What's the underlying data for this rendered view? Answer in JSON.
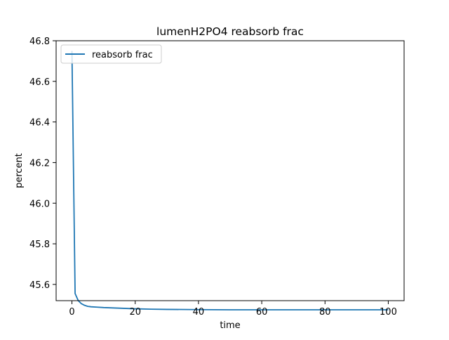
{
  "chart_data": {
    "type": "line",
    "title": "lumenH2PO4 reabsorb frac",
    "xlabel": "time",
    "ylabel": "percent",
    "xlim": [
      -5,
      105
    ],
    "ylim": [
      45.52,
      46.8
    ],
    "xticks": [
      0,
      20,
      40,
      60,
      80,
      100
    ],
    "yticks": [
      45.6,
      45.8,
      46.0,
      46.2,
      46.4,
      46.6,
      46.8
    ],
    "xtick_labels": [
      "0",
      "20",
      "40",
      "60",
      "80",
      "100"
    ],
    "ytick_labels": [
      "45.6",
      "45.8",
      "46.0",
      "46.2",
      "46.4",
      "46.6",
      "46.8"
    ],
    "grid": false,
    "legend_position": "upper left",
    "series": [
      {
        "name": "reabsorb frac",
        "color": "#1f77b4",
        "x": [
          0,
          1,
          2,
          3,
          4,
          5,
          6,
          8,
          10,
          15,
          20,
          25,
          30,
          40,
          50,
          60,
          70,
          80,
          90,
          100
        ],
        "y": [
          46.75,
          45.555,
          45.52,
          45.505,
          45.497,
          45.492,
          45.49,
          45.488,
          45.486,
          45.483,
          45.48,
          45.478,
          45.477,
          45.476,
          45.475,
          45.475,
          45.475,
          45.475,
          45.475,
          45.475
        ]
      }
    ]
  }
}
